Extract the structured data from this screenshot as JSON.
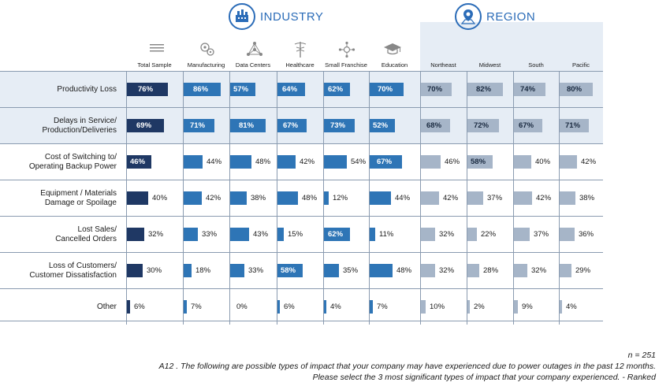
{
  "header": {
    "industry_title": "INDUSTRY",
    "region_title": "REGION",
    "industry_icon": "factory-icon",
    "region_icon": "map-pin-icon"
  },
  "colors": {
    "total": "#1f3864",
    "industry": "#2e75b6",
    "region": "#a6b5c8",
    "band": "#e6edf5"
  },
  "columns": [
    {
      "label": "Total Sample",
      "group": "total",
      "icon": "lines-icon"
    },
    {
      "label": "Manufacturing",
      "group": "industry",
      "icon": "gears-icon"
    },
    {
      "label": "Data Centers",
      "group": "industry",
      "icon": "network-icon"
    },
    {
      "label": "Healthcare",
      "group": "industry",
      "icon": "caduceus-icon"
    },
    {
      "label": "Small Franchise",
      "group": "industry",
      "icon": "hub-icon"
    },
    {
      "label": "Education",
      "group": "industry",
      "icon": "graduation-cap-icon"
    },
    {
      "label": "Northeast",
      "group": "region",
      "icon": ""
    },
    {
      "label": "Midwest",
      "group": "region",
      "icon": ""
    },
    {
      "label": "South",
      "group": "region",
      "icon": ""
    },
    {
      "label": "Pacific",
      "group": "region",
      "icon": ""
    }
  ],
  "chart_data": {
    "type": "bar",
    "categories": [
      "Total Sample",
      "Manufacturing",
      "Data Centers",
      "Healthcare",
      "Small Franchise",
      "Education",
      "Northeast",
      "Midwest",
      "South",
      "Pacific"
    ],
    "series": [
      {
        "name": "Productivity Loss",
        "values": [
          76,
          86,
          57,
          64,
          62,
          70,
          70,
          82,
          74,
          80
        ]
      },
      {
        "name": "Delays in Service/ Production/Deliveries",
        "values": [
          69,
          71,
          81,
          67,
          73,
          52,
          68,
          72,
          67,
          71
        ]
      },
      {
        "name": "Cost of Switching to/ Operating Backup Power",
        "values": [
          46,
          44,
          48,
          42,
          54,
          67,
          46,
          58,
          40,
          42
        ]
      },
      {
        "name": "Equipment / Materials Damage or Spoilage",
        "values": [
          40,
          42,
          38,
          48,
          12,
          44,
          42,
          37,
          42,
          38
        ]
      },
      {
        "name": "Lost Sales/ Cancelled Orders",
        "values": [
          32,
          33,
          43,
          15,
          62,
          11,
          32,
          22,
          37,
          36
        ]
      },
      {
        "name": "Loss of Customers/ Customer Dissatisfaction",
        "values": [
          30,
          18,
          33,
          58,
          35,
          48,
          32,
          28,
          32,
          29
        ]
      },
      {
        "name": "Other",
        "values": [
          6,
          7,
          0,
          6,
          4,
          7,
          10,
          2,
          9,
          4
        ]
      }
    ],
    "row_labels": [
      [
        "Productivity Loss"
      ],
      [
        "Delays in Service/",
        "Production/Deliveries"
      ],
      [
        "Cost of Switching to/",
        "Operating Backup Power"
      ],
      [
        "Equipment / Materials",
        "Damage or Spoilage"
      ],
      [
        "Lost Sales/",
        "Cancelled Orders"
      ],
      [
        "Loss of Customers/",
        "Customer Dissatisfaction"
      ],
      [
        "Other"
      ]
    ],
    "highlighted_rows": [
      0,
      1
    ],
    "unit": "%"
  },
  "footer": {
    "n": "n = 251",
    "question": "A12 . The following are possible types of impact that your company may have experienced due to power outages in the past 12 months.",
    "instruction": "Please select the 3 most significant types of impact that your company experienced. - Ranked"
  }
}
